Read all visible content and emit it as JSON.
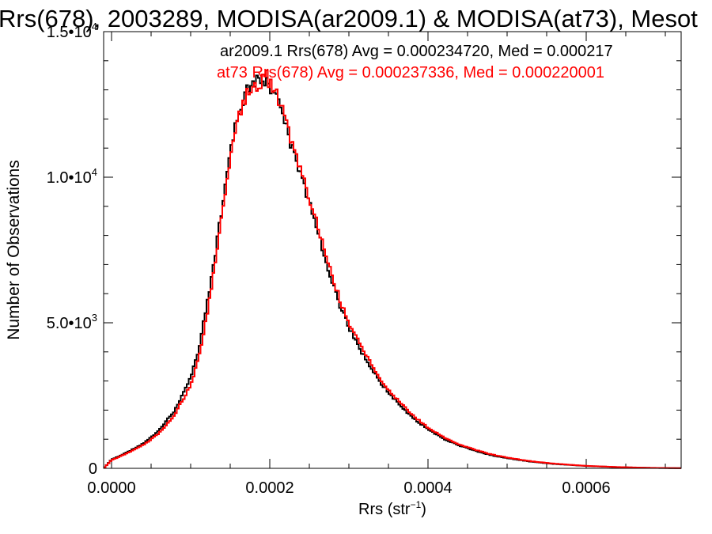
{
  "chart_data": {
    "type": "line",
    "title": "Rrs(678), 2003289, MODISA(ar2009.1) & MODISA(at73), Mesot",
    "xlabel_main": "Rrs (str",
    "xlabel_sup": "−1",
    "xlabel_close": ")",
    "ylabel": "Number of Observations",
    "xlim": [
      -1e-05,
      0.00072
    ],
    "ylim": [
      0,
      15000
    ],
    "x_ticks": [
      {
        "value": 0.0,
        "label": "0.0000"
      },
      {
        "value": 0.0002,
        "label": "0.0002"
      },
      {
        "value": 0.0004,
        "label": "0.0004"
      },
      {
        "value": 0.0006,
        "label": "0.0006"
      }
    ],
    "y_ticks": [
      {
        "value": 0,
        "mant": "0",
        "exp": ""
      },
      {
        "value": 5000,
        "mant": "5.0•10",
        "exp": "3"
      },
      {
        "value": 10000,
        "mant": "1.0•10",
        "exp": "4"
      },
      {
        "value": 15000,
        "mant": "1.5•10",
        "exp": "4"
      }
    ],
    "x_minor_step": 5e-05,
    "y_minor_step": 1000,
    "legend_placement": "top-right",
    "series": [
      {
        "name": "ar2009.1",
        "label": "ar2009.1 Rrs(678) Avg = 0.000234720, Med = 0.000217",
        "color": "#000000",
        "x": [
          -1e-05,
          0.0,
          2e-05,
          4e-05,
          6e-05,
          8e-05,
          0.0001,
          0.00011,
          0.00012,
          0.00013,
          0.00014,
          0.00015,
          0.00016,
          0.00017,
          0.00018,
          0.00019,
          0.000195,
          0.0002,
          0.00021,
          0.00022,
          0.00023,
          0.00024,
          0.00025,
          0.00026,
          0.00027,
          0.00028,
          0.00029,
          0.0003,
          0.00032,
          0.00034,
          0.00036,
          0.00038,
          0.0004,
          0.00042,
          0.00044,
          0.00046,
          0.00048,
          0.0005,
          0.00053,
          0.00056,
          0.0006,
          0.00064,
          0.00068,
          0.00072
        ],
        "y": [
          0,
          300,
          550,
          850,
          1300,
          2000,
          3100,
          4100,
          5500,
          7200,
          9000,
          10800,
          12200,
          12900,
          13200,
          13400,
          13300,
          13150,
          12600,
          11800,
          10800,
          10000,
          9100,
          8200,
          7200,
          6300,
          5500,
          4850,
          3800,
          2950,
          2300,
          1750,
          1350,
          1000,
          780,
          600,
          450,
          350,
          230,
          150,
          80,
          40,
          15,
          5
        ]
      },
      {
        "name": "at73",
        "label": "at73 Rrs(678) Avg = 0.000237336, Med = 0.000220001",
        "color": "#ff0000",
        "x": [
          -1e-05,
          0.0,
          2e-05,
          4e-05,
          6e-05,
          8e-05,
          0.0001,
          0.00011,
          0.00012,
          0.00013,
          0.00014,
          0.00015,
          0.00016,
          0.00017,
          0.00018,
          0.00019,
          0.000195,
          0.0002,
          0.00021,
          0.00022,
          0.00023,
          0.00024,
          0.00025,
          0.00026,
          0.00027,
          0.00028,
          0.00029,
          0.0003,
          0.00032,
          0.00034,
          0.00036,
          0.00038,
          0.0004,
          0.00042,
          0.00044,
          0.00046,
          0.00048,
          0.0005,
          0.00053,
          0.00056,
          0.0006,
          0.00064,
          0.00068,
          0.00072
        ],
        "y": [
          0,
          280,
          520,
          800,
          1200,
          1850,
          2850,
          3800,
          5150,
          6850,
          8700,
          10500,
          12000,
          12800,
          13100,
          13300,
          13500,
          13250,
          12750,
          12000,
          11000,
          10200,
          9300,
          8400,
          7400,
          6500,
          5700,
          5000,
          3950,
          3050,
          2400,
          1830,
          1400,
          1060,
          820,
          630,
          480,
          370,
          245,
          160,
          85,
          45,
          18,
          6
        ]
      }
    ]
  }
}
